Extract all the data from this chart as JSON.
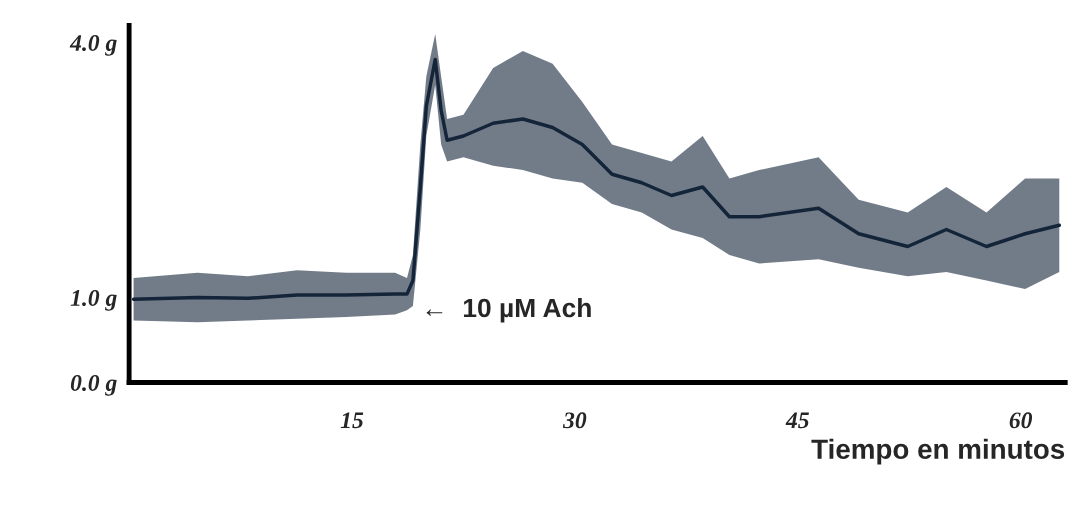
{
  "chart_data": {
    "type": "line",
    "xlabel": "Tiempo en minutos",
    "x": [
      0.3,
      4.6,
      8,
      11.3,
      14.6,
      17.9,
      18.7,
      19.1,
      19.6,
      20.0,
      20.6,
      21.0,
      21.4,
      22.5,
      24.5,
      26.5,
      28.5,
      30.5,
      32.5,
      34.5,
      36.5,
      38.6,
      40.4,
      42.4,
      46.4,
      49.1,
      52.4,
      55,
      57.7,
      60.3,
      62.6
    ],
    "series": [
      {
        "color": "#14253a",
        "values": [
          0.98,
          1.0,
          0.99,
          1.03,
          1.03,
          1.04,
          1.04,
          1.2,
          2.3,
          3.25,
          3.8,
          3.2,
          2.85,
          2.9,
          3.05,
          3.1,
          3.0,
          2.8,
          2.45,
          2.35,
          2.2,
          2.3,
          1.95,
          1.95,
          2.05,
          1.75,
          1.6,
          1.8,
          1.6,
          1.75,
          1.85
        ],
        "upper": [
          1.23,
          1.29,
          1.25,
          1.32,
          1.29,
          1.29,
          1.23,
          1.5,
          2.8,
          3.6,
          4.1,
          3.6,
          3.1,
          3.15,
          3.7,
          3.9,
          3.75,
          3.3,
          2.8,
          2.7,
          2.6,
          2.9,
          2.4,
          2.5,
          2.65,
          2.15,
          2.0,
          2.3,
          2.0,
          2.4,
          2.4
        ],
        "lower": [
          0.73,
          0.71,
          0.73,
          0.75,
          0.77,
          0.8,
          0.85,
          0.9,
          1.8,
          2.9,
          3.5,
          2.8,
          2.6,
          2.65,
          2.55,
          2.5,
          2.4,
          2.35,
          2.1,
          2.0,
          1.8,
          1.7,
          1.5,
          1.4,
          1.45,
          1.35,
          1.25,
          1.3,
          1.2,
          1.1,
          1.3
        ]
      }
    ],
    "xlim": [
      0,
      63
    ],
    "ylim": [
      0,
      4.2
    ],
    "xticks": [
      15,
      30,
      45,
      60
    ],
    "yticks": [
      {
        "value": 0,
        "label": "0.0 g"
      },
      {
        "value": 1,
        "label": "1.0 g"
      },
      {
        "value": 4,
        "label": "4.0 g"
      }
    ],
    "annotations": [
      {
        "text": "←  10 µM Ach",
        "x": 19.1,
        "y": 0.85
      }
    ],
    "grid": false,
    "legend": false,
    "marker": "none",
    "line_style": "solid"
  }
}
